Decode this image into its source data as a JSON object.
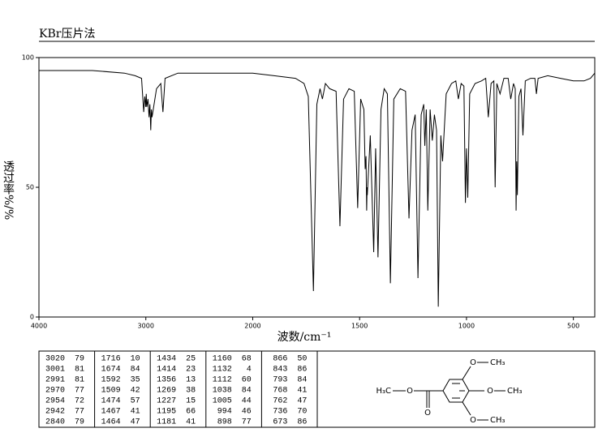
{
  "chart_data": {
    "type": "line",
    "title": "KBr压片法",
    "x_label": "波数/cm⁻¹",
    "y_label": "透过率%/%",
    "xlim": [
      4000,
      400
    ],
    "x_scale_break": 2000,
    "x_scale_ratio": 2,
    "xticks": [
      4000,
      3000,
      2000,
      1500,
      1000,
      500
    ],
    "ylim": [
      0,
      100
    ],
    "yticks": [
      0,
      50,
      100
    ],
    "x": [
      4000,
      3500,
      3200,
      3100,
      3040,
      3020,
      3010,
      3001,
      2996,
      2991,
      2980,
      2970,
      2962,
      2954,
      2948,
      2942,
      2900,
      2860,
      2840,
      2820,
      2700,
      2500,
      2300,
      2100,
      2000,
      1900,
      1800,
      1760,
      1740,
      1716,
      1700,
      1685,
      1674,
      1660,
      1640,
      1610,
      1592,
      1575,
      1550,
      1525,
      1509,
      1495,
      1480,
      1474,
      1470,
      1467,
      1465,
      1464,
      1450,
      1434,
      1425,
      1414,
      1400,
      1385,
      1370,
      1356,
      1340,
      1310,
      1285,
      1269,
      1255,
      1240,
      1227,
      1212,
      1200,
      1195,
      1188,
      1181,
      1170,
      1160,
      1150,
      1140,
      1132,
      1120,
      1112,
      1095,
      1070,
      1050,
      1038,
      1025,
      1012,
      1005,
      1000,
      994,
      985,
      960,
      930,
      910,
      898,
      885,
      872,
      866,
      858,
      843,
      825,
      805,
      793,
      780,
      772,
      768,
      765,
      762,
      755,
      745,
      736,
      725,
      700,
      680,
      673,
      665,
      620,
      560,
      500,
      450,
      420,
      400
    ],
    "series": [
      {
        "color": "#000000",
        "values": [
          95,
          95,
          94,
          93,
          92,
          79,
          85,
          81,
          86,
          81,
          84,
          77,
          82,
          72,
          80,
          77,
          88,
          90,
          79,
          92,
          94,
          94,
          94,
          94,
          94,
          93,
          92,
          90,
          85,
          10,
          82,
          88,
          84,
          90,
          88,
          87,
          35,
          84,
          88,
          87,
          42,
          84,
          80,
          57,
          62,
          41,
          50,
          47,
          70,
          25,
          65,
          23,
          80,
          88,
          86,
          13,
          84,
          88,
          87,
          38,
          72,
          78,
          15,
          78,
          82,
          66,
          80,
          41,
          80,
          68,
          78,
          72,
          4,
          70,
          60,
          86,
          90,
          91,
          84,
          90,
          89,
          44,
          65,
          46,
          86,
          90,
          91,
          92,
          77,
          90,
          91,
          50,
          90,
          86,
          92,
          92,
          84,
          90,
          88,
          41,
          60,
          47,
          85,
          88,
          70,
          91,
          92,
          92,
          86,
          92,
          93,
          92,
          91,
          91,
          92,
          94
        ]
      }
    ]
  },
  "peak_table": {
    "groups": [
      [
        [
          3020,
          79
        ],
        [
          3001,
          81
        ],
        [
          2991,
          81
        ],
        [
          2970,
          77
        ],
        [
          2954,
          72
        ],
        [
          2942,
          77
        ],
        [
          2840,
          79
        ]
      ],
      [
        [
          1716,
          10
        ],
        [
          1674,
          84
        ],
        [
          1592,
          35
        ],
        [
          1509,
          42
        ],
        [
          1474,
          57
        ],
        [
          1467,
          41
        ],
        [
          1464,
          47
        ]
      ],
      [
        [
          1434,
          25
        ],
        [
          1414,
          23
        ],
        [
          1356,
          13
        ],
        [
          1269,
          38
        ],
        [
          1227,
          15
        ],
        [
          1195,
          66
        ],
        [
          1181,
          41
        ]
      ],
      [
        [
          1160,
          68
        ],
        [
          1132,
          4
        ],
        [
          1112,
          60
        ],
        [
          1038,
          84
        ],
        [
          1005,
          44
        ],
        [
          994,
          46
        ],
        [
          898,
          77
        ]
      ],
      [
        [
          866,
          50
        ],
        [
          843,
          86
        ],
        [
          793,
          84
        ],
        [
          768,
          41
        ],
        [
          762,
          47
        ],
        [
          736,
          70
        ],
        [
          673,
          86
        ]
      ]
    ]
  },
  "structure": {
    "top_o": "O",
    "top_ch3": "CH₃",
    "para_o": "O",
    "para_ch3": "CH₃",
    "bottom_o": "O",
    "bottom_ch3": "CH₃",
    "ester_ch3": "H₃C",
    "ester_o": "O",
    "carbonyl_o": "O"
  }
}
